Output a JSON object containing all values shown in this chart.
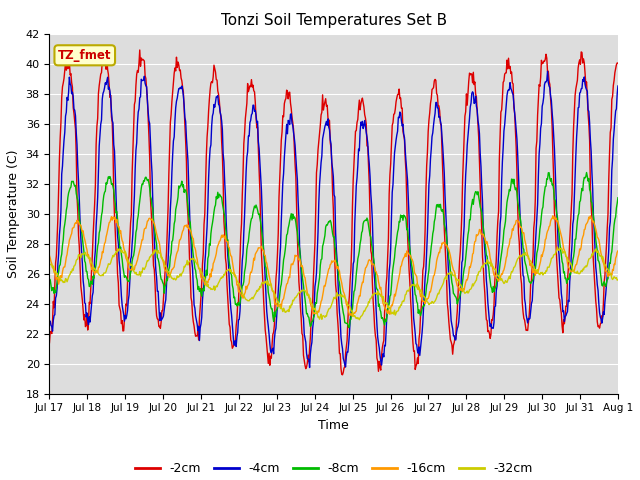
{
  "title": "Tonzi Soil Temperatures Set B",
  "xlabel": "Time",
  "ylabel": "Soil Temperature (C)",
  "ylim": [
    18,
    42
  ],
  "yticks": [
    18,
    20,
    22,
    24,
    26,
    28,
    30,
    32,
    34,
    36,
    38,
    40,
    42
  ],
  "xtick_labels": [
    "Jul 17",
    "Jul 18",
    "Jul 19",
    "Jul 20",
    "Jul 21",
    "Jul 22",
    "Jul 23",
    "Jul 24",
    "Jul 25",
    "Jul 26",
    "Jul 27",
    "Jul 28",
    "Jul 29",
    "Jul 30",
    "Jul 31",
    "Aug 1"
  ],
  "colors": {
    "-2cm": "#dd0000",
    "-4cm": "#0000cc",
    "-8cm": "#00bb00",
    "-16cm": "#ff9900",
    "-32cm": "#cccc00"
  },
  "legend_labels": [
    "-2cm",
    "-4cm",
    "-8cm",
    "-16cm",
    "-32cm"
  ],
  "annotation_text": "TZ_fmet",
  "annotation_bg": "#ffffcc",
  "annotation_border": "#bbaa00",
  "bg_color": "#dddddd",
  "n_days": 15.5,
  "pts_per_day": 48
}
